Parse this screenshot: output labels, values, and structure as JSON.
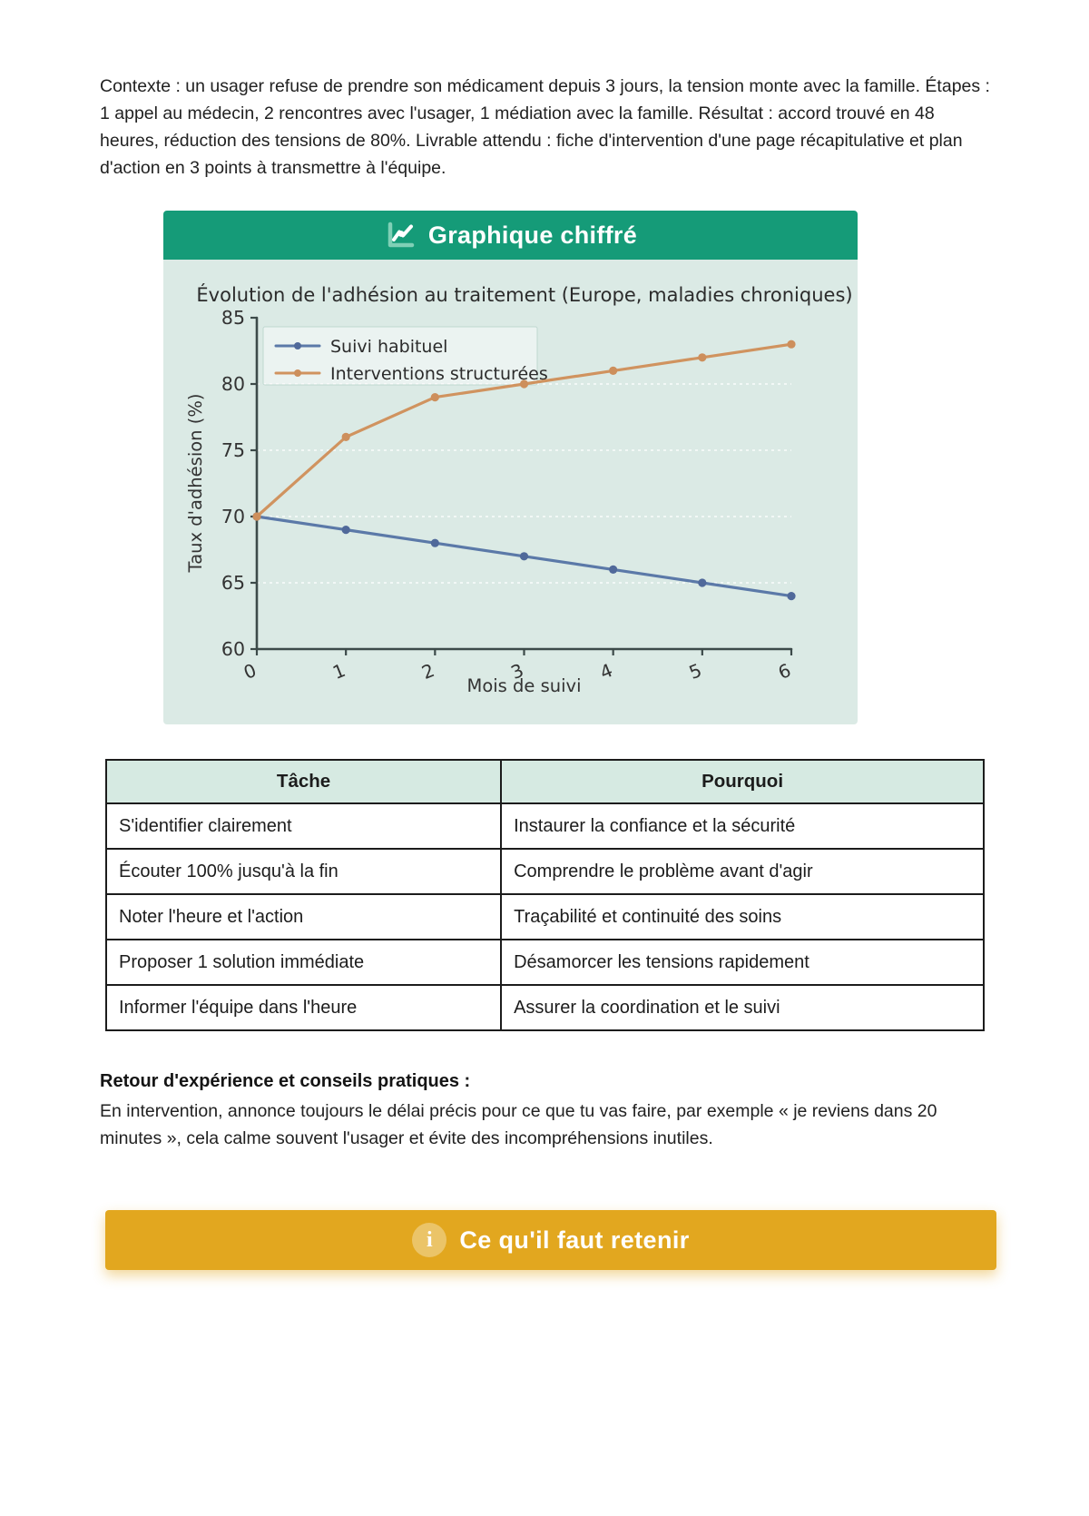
{
  "intro": {
    "text": "Contexte : un usager refuse de prendre son médicament depuis 3 jours, la tension monte avec la famille. Étapes : 1 appel au médecin, 2 rencontres avec l'usager, 1 médiation avec la famille. Résultat : accord trouvé en 48 heures, réduction des tensions de 80%. Livrable attendu : fiche d'intervention d'une page récapitulative et plan d'action en 3 points à transmettre à l'équipe."
  },
  "chart_card": {
    "title": "Graphique chiffré",
    "icon": "line-chart-icon"
  },
  "chart_data": {
    "type": "line",
    "title": "Évolution de l'adhésion au traitement (Europe, maladies chroniques)",
    "xlabel": "Mois de suivi",
    "ylabel": "Taux d'adhésion (%)",
    "x": [
      0,
      1,
      2,
      3,
      4,
      5,
      6
    ],
    "ylim": [
      60,
      85
    ],
    "yticks": [
      60,
      65,
      70,
      75,
      80,
      85
    ],
    "grid": true,
    "legend_position": "upper left",
    "series": [
      {
        "name": "Suivi habituel",
        "color": "#5b79a8",
        "marker_color": "#50699a",
        "values": [
          70,
          69,
          68,
          67,
          66,
          65,
          64
        ]
      },
      {
        "name": "Interventions structurées",
        "color": "#d0935f",
        "marker_color": "#cd8f5c",
        "values": [
          70,
          76,
          79,
          80,
          81,
          82,
          83
        ]
      }
    ]
  },
  "table": {
    "headers": [
      "Tâche",
      "Pourquoi"
    ],
    "rows": [
      [
        "S'identifier clairement",
        "Instaurer la confiance et la sécurité"
      ],
      [
        "Écouter 100% jusqu'à la fin",
        "Comprendre le problème avant d'agir"
      ],
      [
        "Noter l'heure et l'action",
        "Traçabilité et continuité des soins"
      ],
      [
        "Proposer 1 solution immédiate",
        "Désamorcer les tensions rapidement"
      ],
      [
        "Informer l'équipe dans l'heure",
        "Assurer la coordination et le suivi"
      ]
    ]
  },
  "feedback": {
    "heading": "Retour d'expérience et conseils pratiques :",
    "text": "En intervention, annonce toujours le délai précis pour ce que tu vas faire, par exemple « je reviens dans 20 minutes », cela calme souvent l'usager et évite des incompréhensions inutiles."
  },
  "banner": {
    "label": "Ce qu'il faut retenir",
    "icon": "info-icon"
  },
  "colors": {
    "header_green": "#159b78",
    "card_mint": "#dbeae5",
    "table_header_mint": "#d6eae2",
    "banner_gold": "#e2a71f",
    "axis": "#3c4a49",
    "grid": "#f2f8f6"
  }
}
